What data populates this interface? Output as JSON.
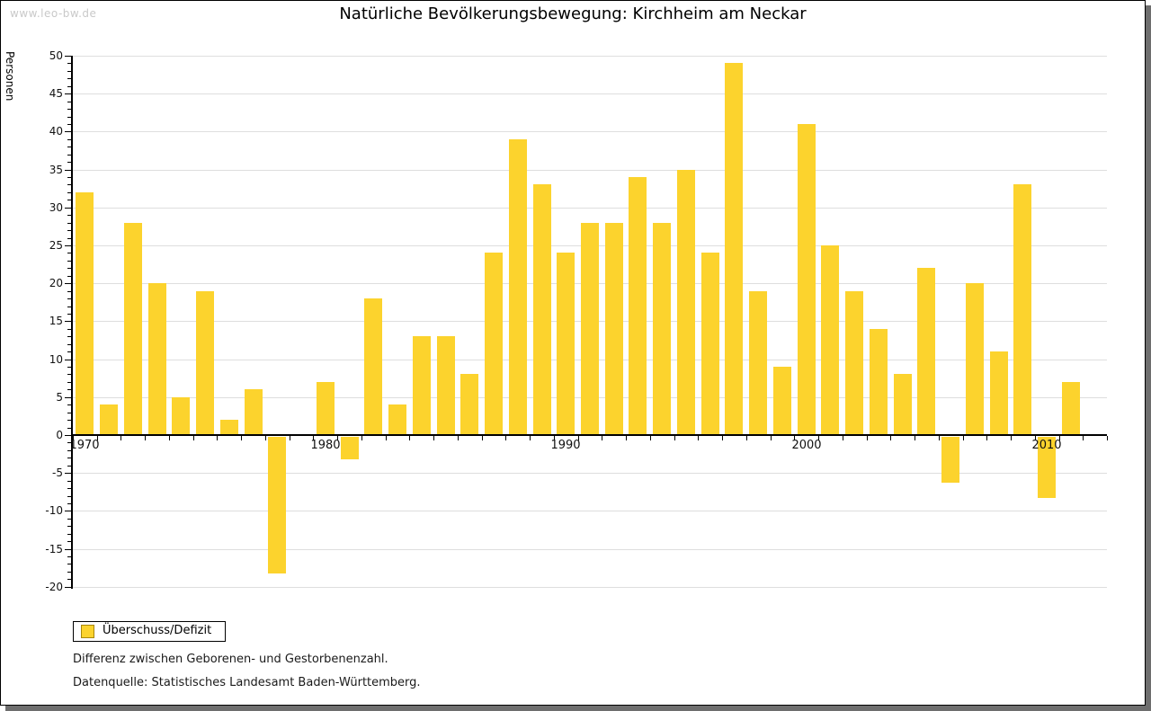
{
  "watermark": "www.leo-bw.de",
  "title": "Natürliche Bevölkerungsbewegung: Kirchheim am Neckar",
  "legend": {
    "label": "Überschuss/Defizit",
    "swatch_color": "#fcd32d",
    "swatch_border_color": "#a8860b"
  },
  "notes": [
    "Differenz zwischen Geborenen- und Gestorbenenzahl.",
    "Datenquelle: Statistisches Landesamt Baden-Württemberg."
  ],
  "chart_data": {
    "type": "bar",
    "title": "Natürliche Bevölkerungsbewegung: Kirchheim am Neckar",
    "xlabel": "",
    "ylabel": "Personen",
    "series_name": "Überschuss/Defizit",
    "x": [
      1970,
      1971,
      1972,
      1973,
      1974,
      1975,
      1976,
      1977,
      1978,
      1979,
      1980,
      1981,
      1982,
      1983,
      1984,
      1985,
      1986,
      1987,
      1988,
      1989,
      1990,
      1991,
      1992,
      1993,
      1994,
      1995,
      1996,
      1997,
      1998,
      1999,
      2000,
      2001,
      2002,
      2003,
      2004,
      2005,
      2006,
      2007,
      2008,
      2009,
      2010,
      2011
    ],
    "values": [
      32,
      4,
      28,
      20,
      5,
      19,
      2,
      6,
      -18,
      0,
      7,
      -3,
      18,
      4,
      13,
      13,
      8,
      24,
      39,
      33,
      24,
      28,
      28,
      34,
      28,
      35,
      24,
      49,
      19,
      9,
      41,
      25,
      19,
      14,
      8,
      22,
      -6,
      20,
      11,
      33,
      -8,
      7
    ],
    "ylim": [
      -20,
      50
    ],
    "ytick_step": 5,
    "ytick_minor_step": 1,
    "xtick_labels": [
      1970,
      1980,
      1990,
      2000,
      2010
    ],
    "grid": true,
    "legend_position": "bottom-left",
    "bar_color": "#fcd32d",
    "grid_color": "#dedede",
    "axis_color": "#000000"
  }
}
